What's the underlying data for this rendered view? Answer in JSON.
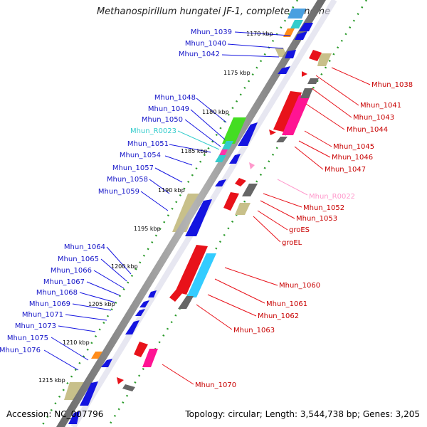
{
  "title": "Methanospirillum hungatei JF-1, complete genome",
  "accession": "Accession: NC_007796",
  "topology": "Topology: circular; Length: 3,544,738 bp; Genes: 3,205",
  "colors": {
    "backbone": "#8a8a8a",
    "forward_gene": "#e8121a",
    "reverse_gene": "#1414e0",
    "rrna": "#ff66b3",
    "trna": "#33cccc",
    "gc_bar": "#c8c08a",
    "gray_gene": "#666666",
    "orange_gene": "#ff8c1a",
    "green_gene": "#44dd22",
    "pink_label": "#ff99cc",
    "tick_dots": "#2a9a2a"
  },
  "tick_labels": [
    "1170 kbp",
    "1175 kbp",
    "1180 kbp",
    "1185 kbp",
    "1190 kbp",
    "1195 kbp",
    "1200 kbp",
    "1205 kbp",
    "1210 kbp",
    "1215 kbp"
  ],
  "genes_left": [
    {
      "label": "Mhun_1039",
      "color": "blue"
    },
    {
      "label": "Mhun_1040",
      "color": "blue"
    },
    {
      "label": "Mhun_1042",
      "color": "blue"
    },
    {
      "label": "Mhun_1048",
      "color": "blue"
    },
    {
      "label": "Mhun_1049",
      "color": "blue"
    },
    {
      "label": "Mhun_1050",
      "color": "blue"
    },
    {
      "label": "Mhun_R0023",
      "color": "cyan"
    },
    {
      "label": "Mhun_1051",
      "color": "blue"
    },
    {
      "label": "Mhun_1054",
      "color": "blue"
    },
    {
      "label": "Mhun_1057",
      "color": "blue"
    },
    {
      "label": "Mhun_1058",
      "color": "blue"
    },
    {
      "label": "Mhun_1059",
      "color": "blue"
    },
    {
      "label": "Mhun_1064",
      "color": "blue"
    },
    {
      "label": "Mhun_1065",
      "color": "blue"
    },
    {
      "label": "Mhun_1066",
      "color": "blue"
    },
    {
      "label": "Mhun_1067",
      "color": "blue"
    },
    {
      "label": "Mhun_1068",
      "color": "blue"
    },
    {
      "label": "Mhun_1069",
      "color": "blue"
    },
    {
      "label": "Mhun_1071",
      "color": "blue"
    },
    {
      "label": "Mhun_1073",
      "color": "blue"
    },
    {
      "label": "Mhun_1075",
      "color": "blue"
    },
    {
      "label": "Mhun_1076",
      "color": "blue"
    }
  ],
  "genes_right": [
    {
      "label": "Mhun_1038",
      "color": "red"
    },
    {
      "label": "Mhun_1041",
      "color": "red"
    },
    {
      "label": "Mhun_1043",
      "color": "red"
    },
    {
      "label": "Mhun_1044",
      "color": "red"
    },
    {
      "label": "Mhun_1045",
      "color": "red"
    },
    {
      "label": "Mhun_1046",
      "color": "red"
    },
    {
      "label": "Mhun_1047",
      "color": "red"
    },
    {
      "label": "Mhun_R0022",
      "color": "pink"
    },
    {
      "label": "Mhun_1052",
      "color": "red"
    },
    {
      "label": "Mhun_1053",
      "color": "red"
    },
    {
      "label": "groES",
      "color": "red"
    },
    {
      "label": "groEL",
      "color": "red"
    },
    {
      "label": "Mhun_1060",
      "color": "red"
    },
    {
      "label": "Mhun_1061",
      "color": "red"
    },
    {
      "label": "Mhun_1062",
      "color": "red"
    },
    {
      "label": "Mhun_1063",
      "color": "red"
    },
    {
      "label": "Mhun_1070",
      "color": "red"
    }
  ]
}
